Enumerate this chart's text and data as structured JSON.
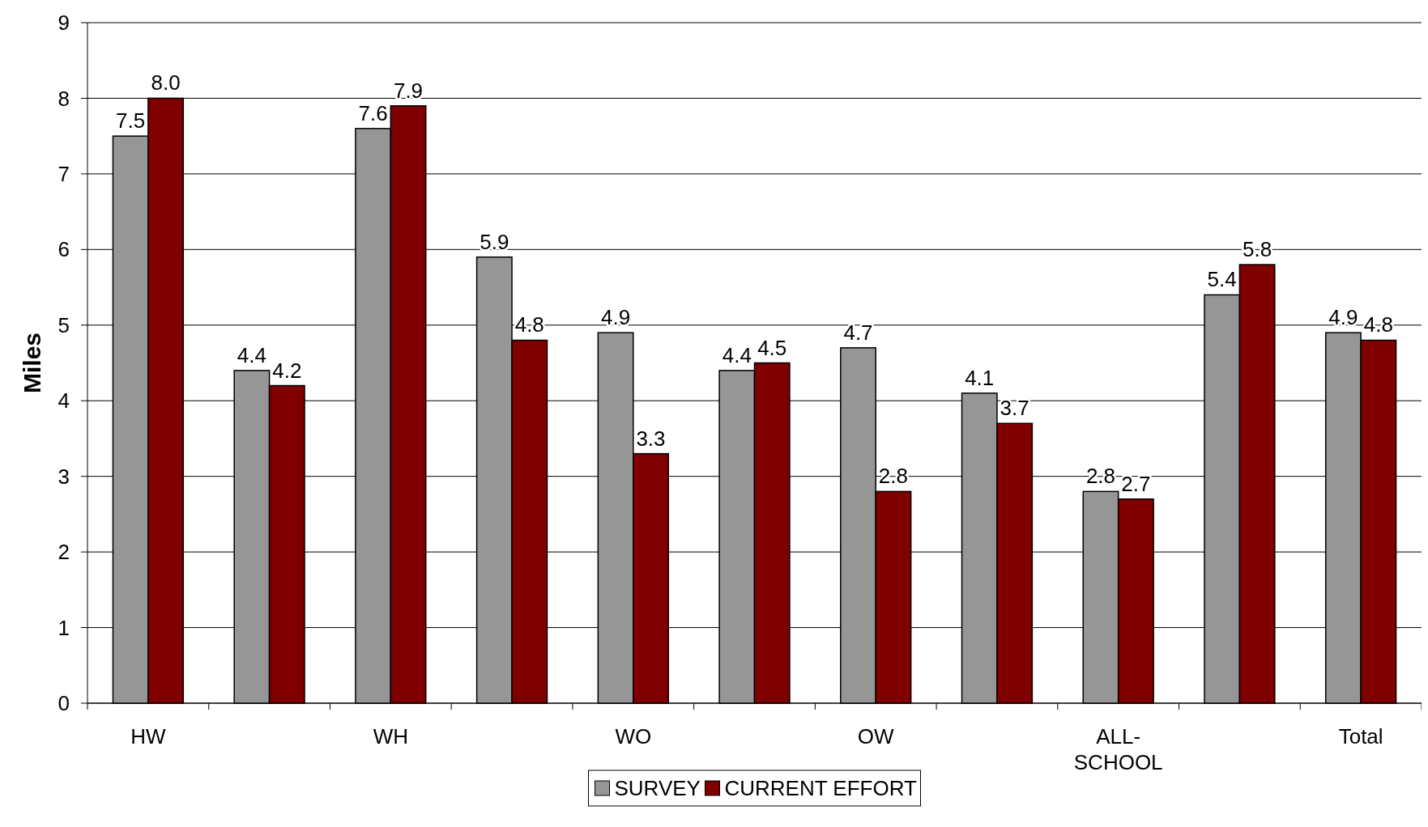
{
  "chart_data": {
    "type": "bar",
    "ylabel": "Miles",
    "categories": [
      "HW",
      null,
      "WH",
      null,
      "WO",
      null,
      "OW",
      null,
      "ALL-SCHOOL",
      null,
      "Total"
    ],
    "series": [
      {
        "name": "SURVEY",
        "color": "#969696",
        "values": [
          7.5,
          4.4,
          7.6,
          5.9,
          4.9,
          4.4,
          4.7,
          4.1,
          2.8,
          5.4,
          4.9
        ],
        "value_labels": [
          "7.5",
          "4.4",
          "7.6",
          "5.9",
          "4.9",
          "4.4",
          "4.7",
          "4.1",
          "2.8",
          "5.4",
          "4.9"
        ]
      },
      {
        "name": "CURRENT EFFORT",
        "color": "#800000",
        "values": [
          8.0,
          4.2,
          7.9,
          4.8,
          3.3,
          4.5,
          2.8,
          3.7,
          2.7,
          5.8,
          4.8
        ],
        "value_labels": [
          "8.0",
          "4.2",
          "7.9",
          "4.8",
          "3.3",
          "4.5",
          "2.8",
          "3.7",
          "2.7",
          "5.8",
          "4.8"
        ]
      }
    ],
    "ylim": [
      0,
      9
    ],
    "yticks": [
      0,
      1,
      2,
      3,
      4,
      5,
      6,
      7,
      8,
      9
    ],
    "grid": "y",
    "legend": "bottom"
  }
}
